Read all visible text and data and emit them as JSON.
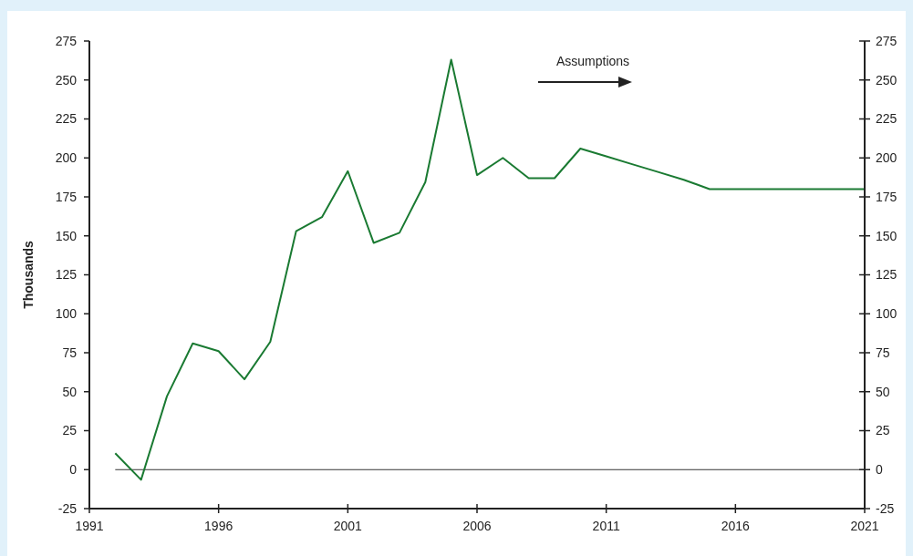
{
  "chart_data": {
    "type": "line",
    "ylabel": "Thousands",
    "annotations": [
      "Assumptions"
    ],
    "x": [
      1992,
      1993,
      1994,
      1995,
      1996,
      1997,
      1998,
      1999,
      2000,
      2001,
      2002,
      2003,
      2004,
      2005,
      2006,
      2007,
      2008,
      2009,
      2010,
      2011,
      2012,
      2013,
      2014,
      2015,
      2016,
      2017,
      2018,
      2019,
      2020,
      2021
    ],
    "series": [
      {
        "color": "#1a7a32",
        "values": [
          10.5,
          -6.5,
          47,
          81,
          76,
          58,
          82,
          153,
          162,
          191.5,
          145.5,
          152,
          184.5,
          263,
          189,
          200,
          187,
          187,
          206,
          201,
          196,
          191,
          186,
          180,
          180,
          180,
          180,
          180,
          180,
          180
        ]
      }
    ],
    "xlim": [
      1991,
      2021
    ],
    "xticks": [
      1991,
      1996,
      2001,
      2006,
      2011,
      2016,
      2021
    ],
    "ylim": [
      -25,
      275
    ],
    "yticks": [
      -25,
      0,
      25,
      50,
      75,
      100,
      125,
      150,
      175,
      200,
      225,
      250,
      275
    ],
    "y2lim": [
      -25,
      275
    ],
    "y2ticks": [
      -25,
      0,
      25,
      50,
      75,
      100,
      125,
      150,
      175,
      200,
      225,
      250,
      275
    ],
    "ref_lines": [
      {
        "axis": "y",
        "value": 0,
        "color": "#000000"
      }
    ],
    "grid": false,
    "marker": "none",
    "line_style": "solid"
  }
}
